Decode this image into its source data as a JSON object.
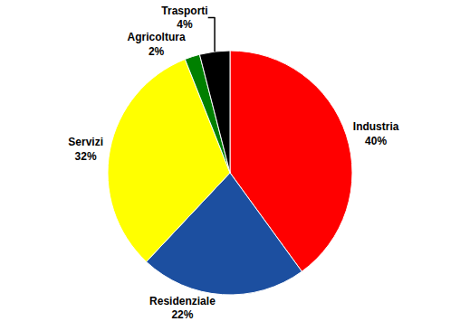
{
  "chart_data": {
    "type": "pie",
    "categories": [
      "Industria",
      "Residenziale",
      "Servizi",
      "Agricoltura",
      "Trasporti"
    ],
    "values": [
      40,
      22,
      32,
      2,
      4
    ],
    "value_labels": [
      "40%",
      "22%",
      "32%",
      "2%",
      "4%"
    ],
    "colors": [
      "#ff0000",
      "#1c4fa0",
      "#ffff00",
      "#008000",
      "#000000"
    ],
    "data_labels": true
  }
}
